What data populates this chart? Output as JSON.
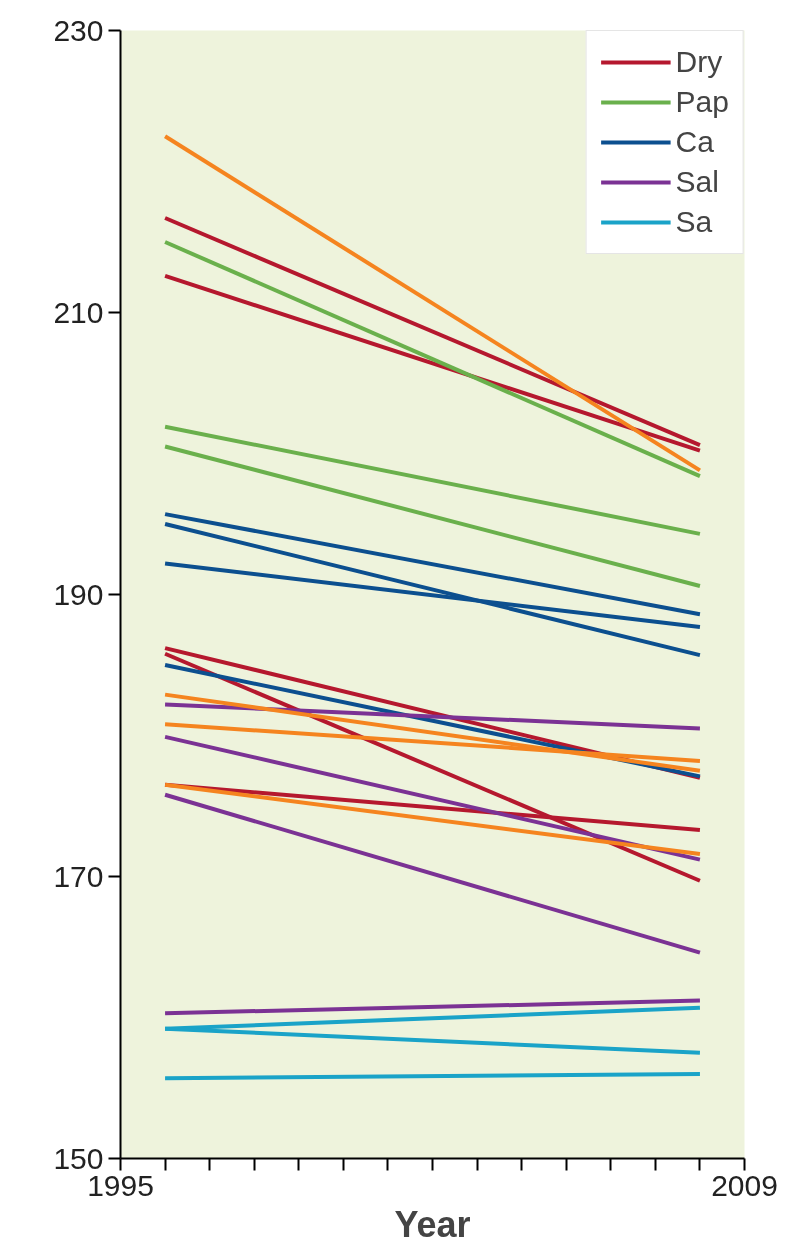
{
  "chart_data": {
    "type": "line",
    "xlabel": "Year",
    "xlim": [
      1995,
      2009
    ],
    "ylim": [
      150,
      230
    ],
    "xticks": [
      1995,
      {
        "value": 1996,
        "label": null
      },
      {
        "value": 1997,
        "label": null
      },
      {
        "value": 1998,
        "label": null
      },
      {
        "value": 1999,
        "label": null
      },
      {
        "value": 2000,
        "label": null
      },
      {
        "value": 2001,
        "label": null
      },
      {
        "value": 2002,
        "label": null
      },
      {
        "value": 2003,
        "label": null
      },
      {
        "value": 2004,
        "label": null
      },
      {
        "value": 2005,
        "label": null
      },
      {
        "value": 2006,
        "label": null
      },
      {
        "value": 2007,
        "label": null
      },
      {
        "value": 2008,
        "label": null
      },
      2009
    ],
    "yticks": [
      150,
      170,
      190,
      210,
      230
    ],
    "grid": false,
    "legend": "top right",
    "line_style": "solid",
    "marker": "none",
    "x": [
      1996,
      2008
    ],
    "series": [
      {
        "name": "Dry",
        "color": "#b5182e",
        "values": [
          216.7,
          200.6
        ]
      },
      {
        "color": "#b5182e",
        "values": [
          212.6,
          200.2
        ]
      },
      {
        "color": "#b5182e",
        "values": [
          186.2,
          177.0
        ]
      },
      {
        "color": "#b5182e",
        "values": [
          185.8,
          169.7
        ]
      },
      {
        "color": "#b5182e",
        "values": [
          176.5,
          173.3
        ]
      },
      {
        "name": "Pap",
        "color": "#6ab04c",
        "values": [
          215.0,
          198.4
        ]
      },
      {
        "color": "#6ab04c",
        "values": [
          201.9,
          194.3
        ]
      },
      {
        "color": "#6ab04c",
        "values": [
          200.5,
          190.6
        ]
      },
      {
        "name": "Ca",
        "color": "#0c4f8f",
        "values": [
          195.7,
          188.6
        ]
      },
      {
        "color": "#0c4f8f",
        "values": [
          195.0,
          185.7
        ]
      },
      {
        "color": "#0c4f8f",
        "values": [
          192.2,
          187.7
        ]
      },
      {
        "color": "#0c4f8f",
        "values": [
          185.0,
          177.1
        ]
      },
      {
        "name": "Sal",
        "color": "#7b3294",
        "values": [
          182.2,
          180.5
        ]
      },
      {
        "color": "#7b3294",
        "values": [
          179.9,
          171.2
        ]
      },
      {
        "color": "#7b3294",
        "values": [
          175.8,
          164.6
        ]
      },
      {
        "color": "#7b3294",
        "values": [
          160.3,
          161.2
        ]
      },
      {
        "name": "Sa",
        "color": "#1aa3c8",
        "values": [
          159.2,
          160.7
        ]
      },
      {
        "color": "#1aa3c8",
        "values": [
          159.2,
          157.5
        ]
      },
      {
        "color": "#1aa3c8",
        "values": [
          155.7,
          156.0
        ]
      },
      {
        "color": "#f5841f",
        "values": [
          222.5,
          198.8
        ]
      },
      {
        "color": "#f5841f",
        "values": [
          182.9,
          177.5
        ]
      },
      {
        "color": "#f5841f",
        "values": [
          180.8,
          178.2
        ]
      },
      {
        "color": "#f5841f",
        "values": [
          176.5,
          171.6
        ]
      }
    ]
  }
}
